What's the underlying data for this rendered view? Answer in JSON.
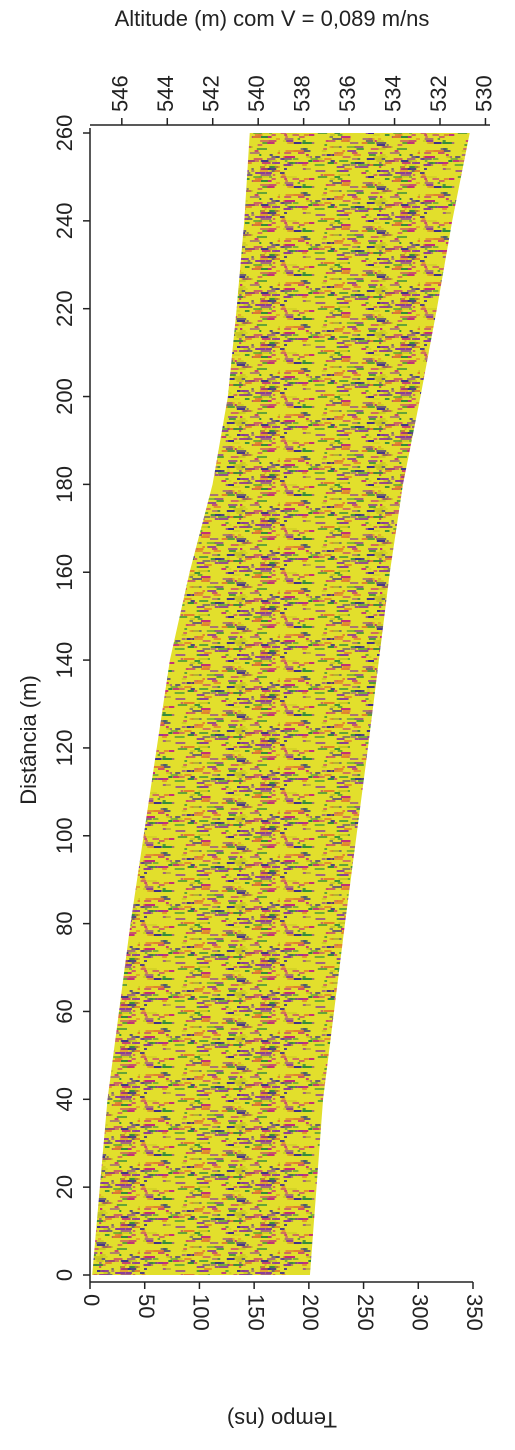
{
  "chart_data": {
    "type": "radargram",
    "title": "Altitude (m) com V = 0,089 m/ns",
    "ylabel": "Distância (m)",
    "xlabel": "Tempo (ns)",
    "ylim": [
      0,
      260
    ],
    "yticks": [
      0,
      20,
      40,
      60,
      80,
      100,
      120,
      140,
      160,
      180,
      200,
      220,
      240,
      260
    ],
    "xlim": [
      0,
      350
    ],
    "xticks": [
      0,
      50,
      100,
      150,
      200,
      250,
      300,
      350
    ],
    "x2lim": [
      547.4,
      529.8
    ],
    "x2ticks": [
      546,
      544,
      542,
      540,
      538,
      536,
      534,
      532,
      530
    ],
    "band": {
      "distance": [
        0,
        40,
        80,
        120,
        140,
        160,
        180,
        200,
        220,
        240,
        260
      ],
      "start": [
        2,
        16,
        37,
        61,
        73,
        91,
        112,
        126,
        134,
        141,
        146
      ],
      "end": [
        201,
        213,
        233,
        254,
        264,
        274,
        286,
        302,
        317,
        331,
        347
      ]
    }
  }
}
